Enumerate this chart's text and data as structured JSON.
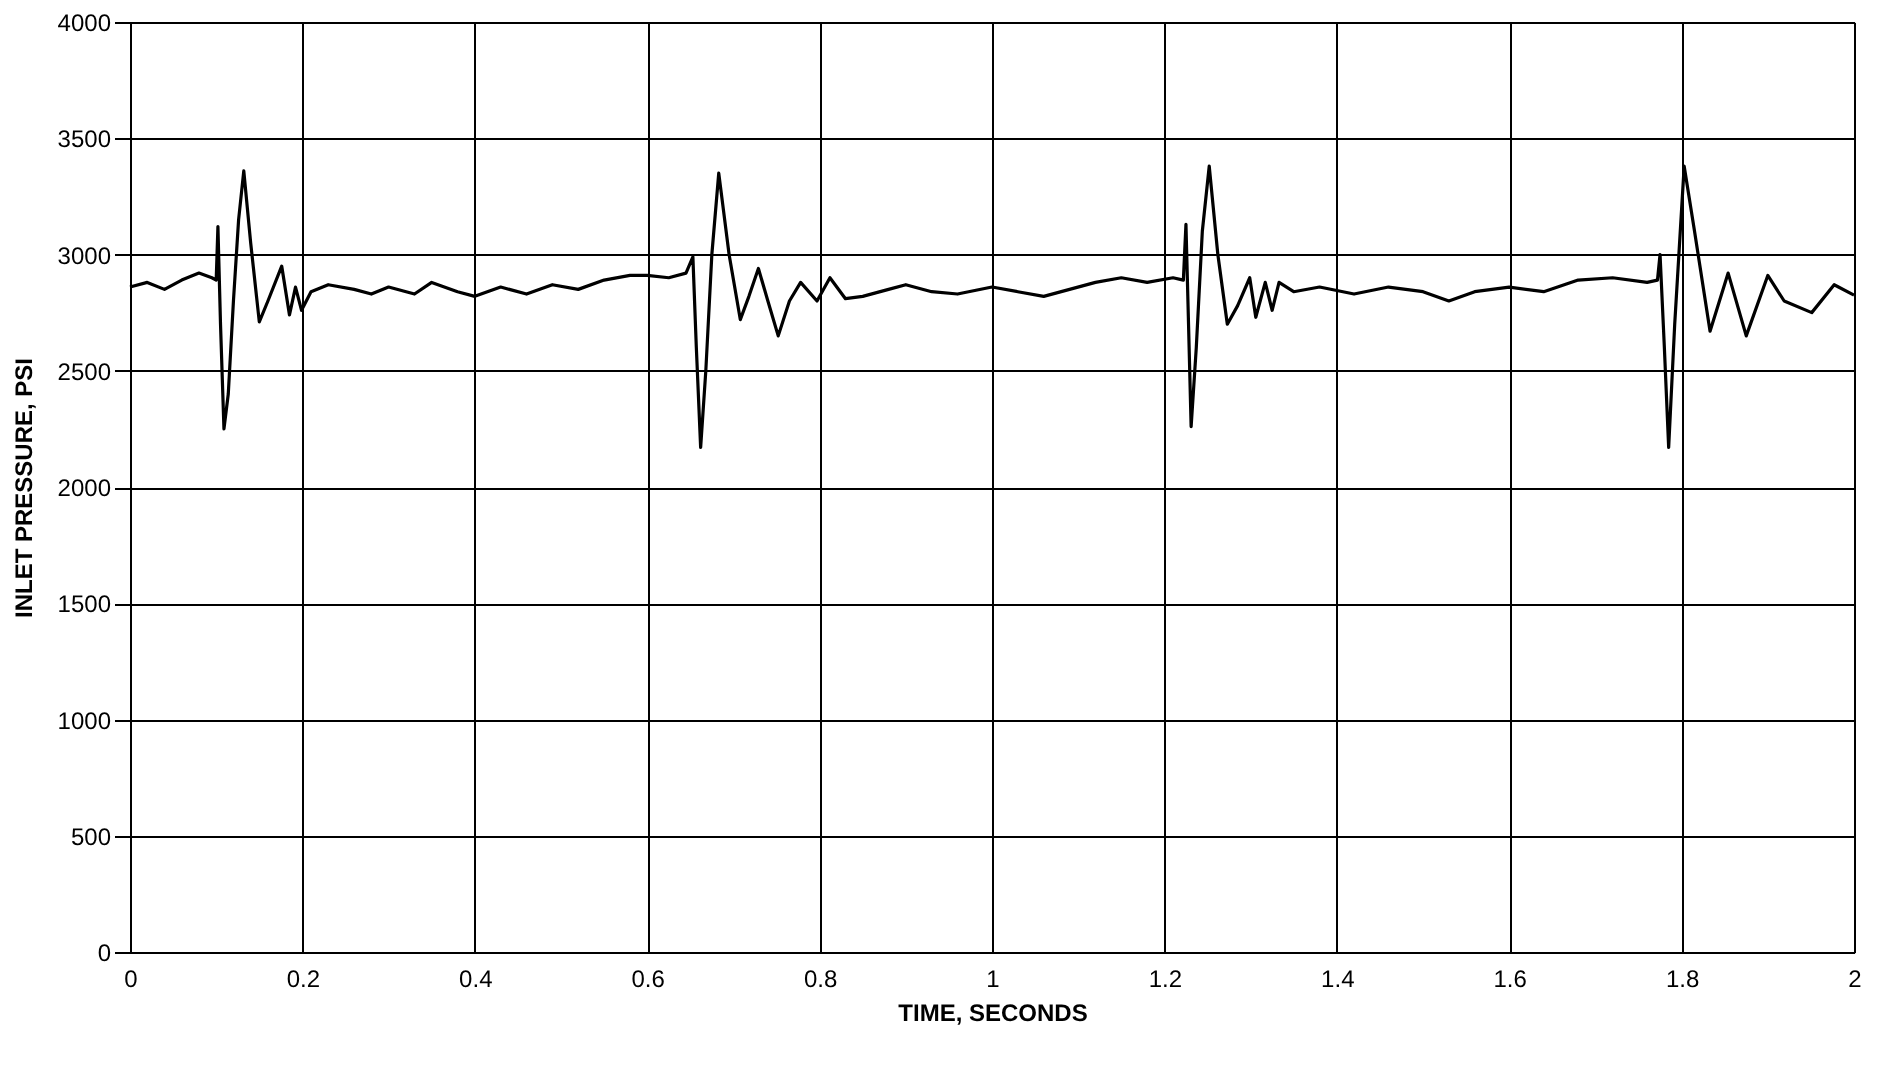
{
  "chart_data": {
    "type": "line",
    "xlabel": "TIME, SECONDS",
    "ylabel": "INLET PRESSURE, PSI",
    "xlim": [
      0,
      2
    ],
    "xticks": [
      0,
      0.2,
      0.4,
      0.6,
      0.8,
      1,
      1.2,
      1.4,
      1.6,
      1.8,
      2
    ],
    "ylim": [
      0,
      4000
    ],
    "yticks": [
      0,
      500,
      1000,
      1500,
      2000,
      2500,
      3000,
      3500,
      4000
    ],
    "grid": true,
    "marker": "none",
    "line_style": "solid",
    "series": [
      {
        "color": "#000000",
        "x": [
          0,
          0.02,
          0.04,
          0.06,
          0.08,
          0.095,
          0.1,
          0.102,
          0.105,
          0.109,
          0.114,
          0.12,
          0.126,
          0.132,
          0.14,
          0.15,
          0.16,
          0.176,
          0.185,
          0.192,
          0.199,
          0.21,
          0.23,
          0.26,
          0.28,
          0.3,
          0.33,
          0.35,
          0.38,
          0.4,
          0.43,
          0.46,
          0.49,
          0.52,
          0.55,
          0.58,
          0.6,
          0.625,
          0.645,
          0.653,
          0.657,
          0.662,
          0.668,
          0.675,
          0.683,
          0.695,
          0.708,
          0.718,
          0.729,
          0.74,
          0.752,
          0.765,
          0.778,
          0.797,
          0.812,
          0.83,
          0.85,
          0.88,
          0.9,
          0.93,
          0.96,
          1.0,
          1.03,
          1.06,
          1.09,
          1.12,
          1.15,
          1.18,
          1.21,
          1.222,
          1.225,
          1.228,
          1.231,
          1.237,
          1.244,
          1.252,
          1.262,
          1.273,
          1.285,
          1.299,
          1.306,
          1.317,
          1.325,
          1.333,
          1.35,
          1.38,
          1.42,
          1.46,
          1.5,
          1.53,
          1.56,
          1.6,
          1.64,
          1.68,
          1.72,
          1.76,
          1.772,
          1.775,
          1.78,
          1.785,
          1.792,
          1.803,
          1.815,
          1.833,
          1.854,
          1.875,
          1.9,
          1.919,
          1.951,
          1.977,
          2.0
        ],
        "values": [
          2860,
          2880,
          2850,
          2890,
          2920,
          2900,
          2890,
          3120,
          2700,
          2250,
          2400,
          2800,
          3150,
          3360,
          3050,
          2710,
          2800,
          2950,
          2740,
          2860,
          2760,
          2840,
          2870,
          2850,
          2830,
          2860,
          2830,
          2880,
          2840,
          2820,
          2860,
          2830,
          2870,
          2850,
          2890,
          2910,
          2910,
          2900,
          2920,
          2990,
          2600,
          2170,
          2500,
          3000,
          3350,
          3000,
          2720,
          2820,
          2940,
          2800,
          2650,
          2800,
          2880,
          2800,
          2900,
          2810,
          2820,
          2850,
          2870,
          2840,
          2830,
          2860,
          2840,
          2820,
          2850,
          2880,
          2900,
          2880,
          2900,
          2890,
          3130,
          2700,
          2260,
          2600,
          3100,
          3380,
          3000,
          2700,
          2780,
          2900,
          2730,
          2880,
          2760,
          2880,
          2840,
          2860,
          2830,
          2860,
          2840,
          2800,
          2840,
          2860,
          2840,
          2890,
          2900,
          2880,
          2890,
          3000,
          2600,
          2170,
          2700,
          3380,
          3100,
          2670,
          2920,
          2650,
          2910,
          2800,
          2750,
          2870,
          2825
        ]
      }
    ]
  }
}
